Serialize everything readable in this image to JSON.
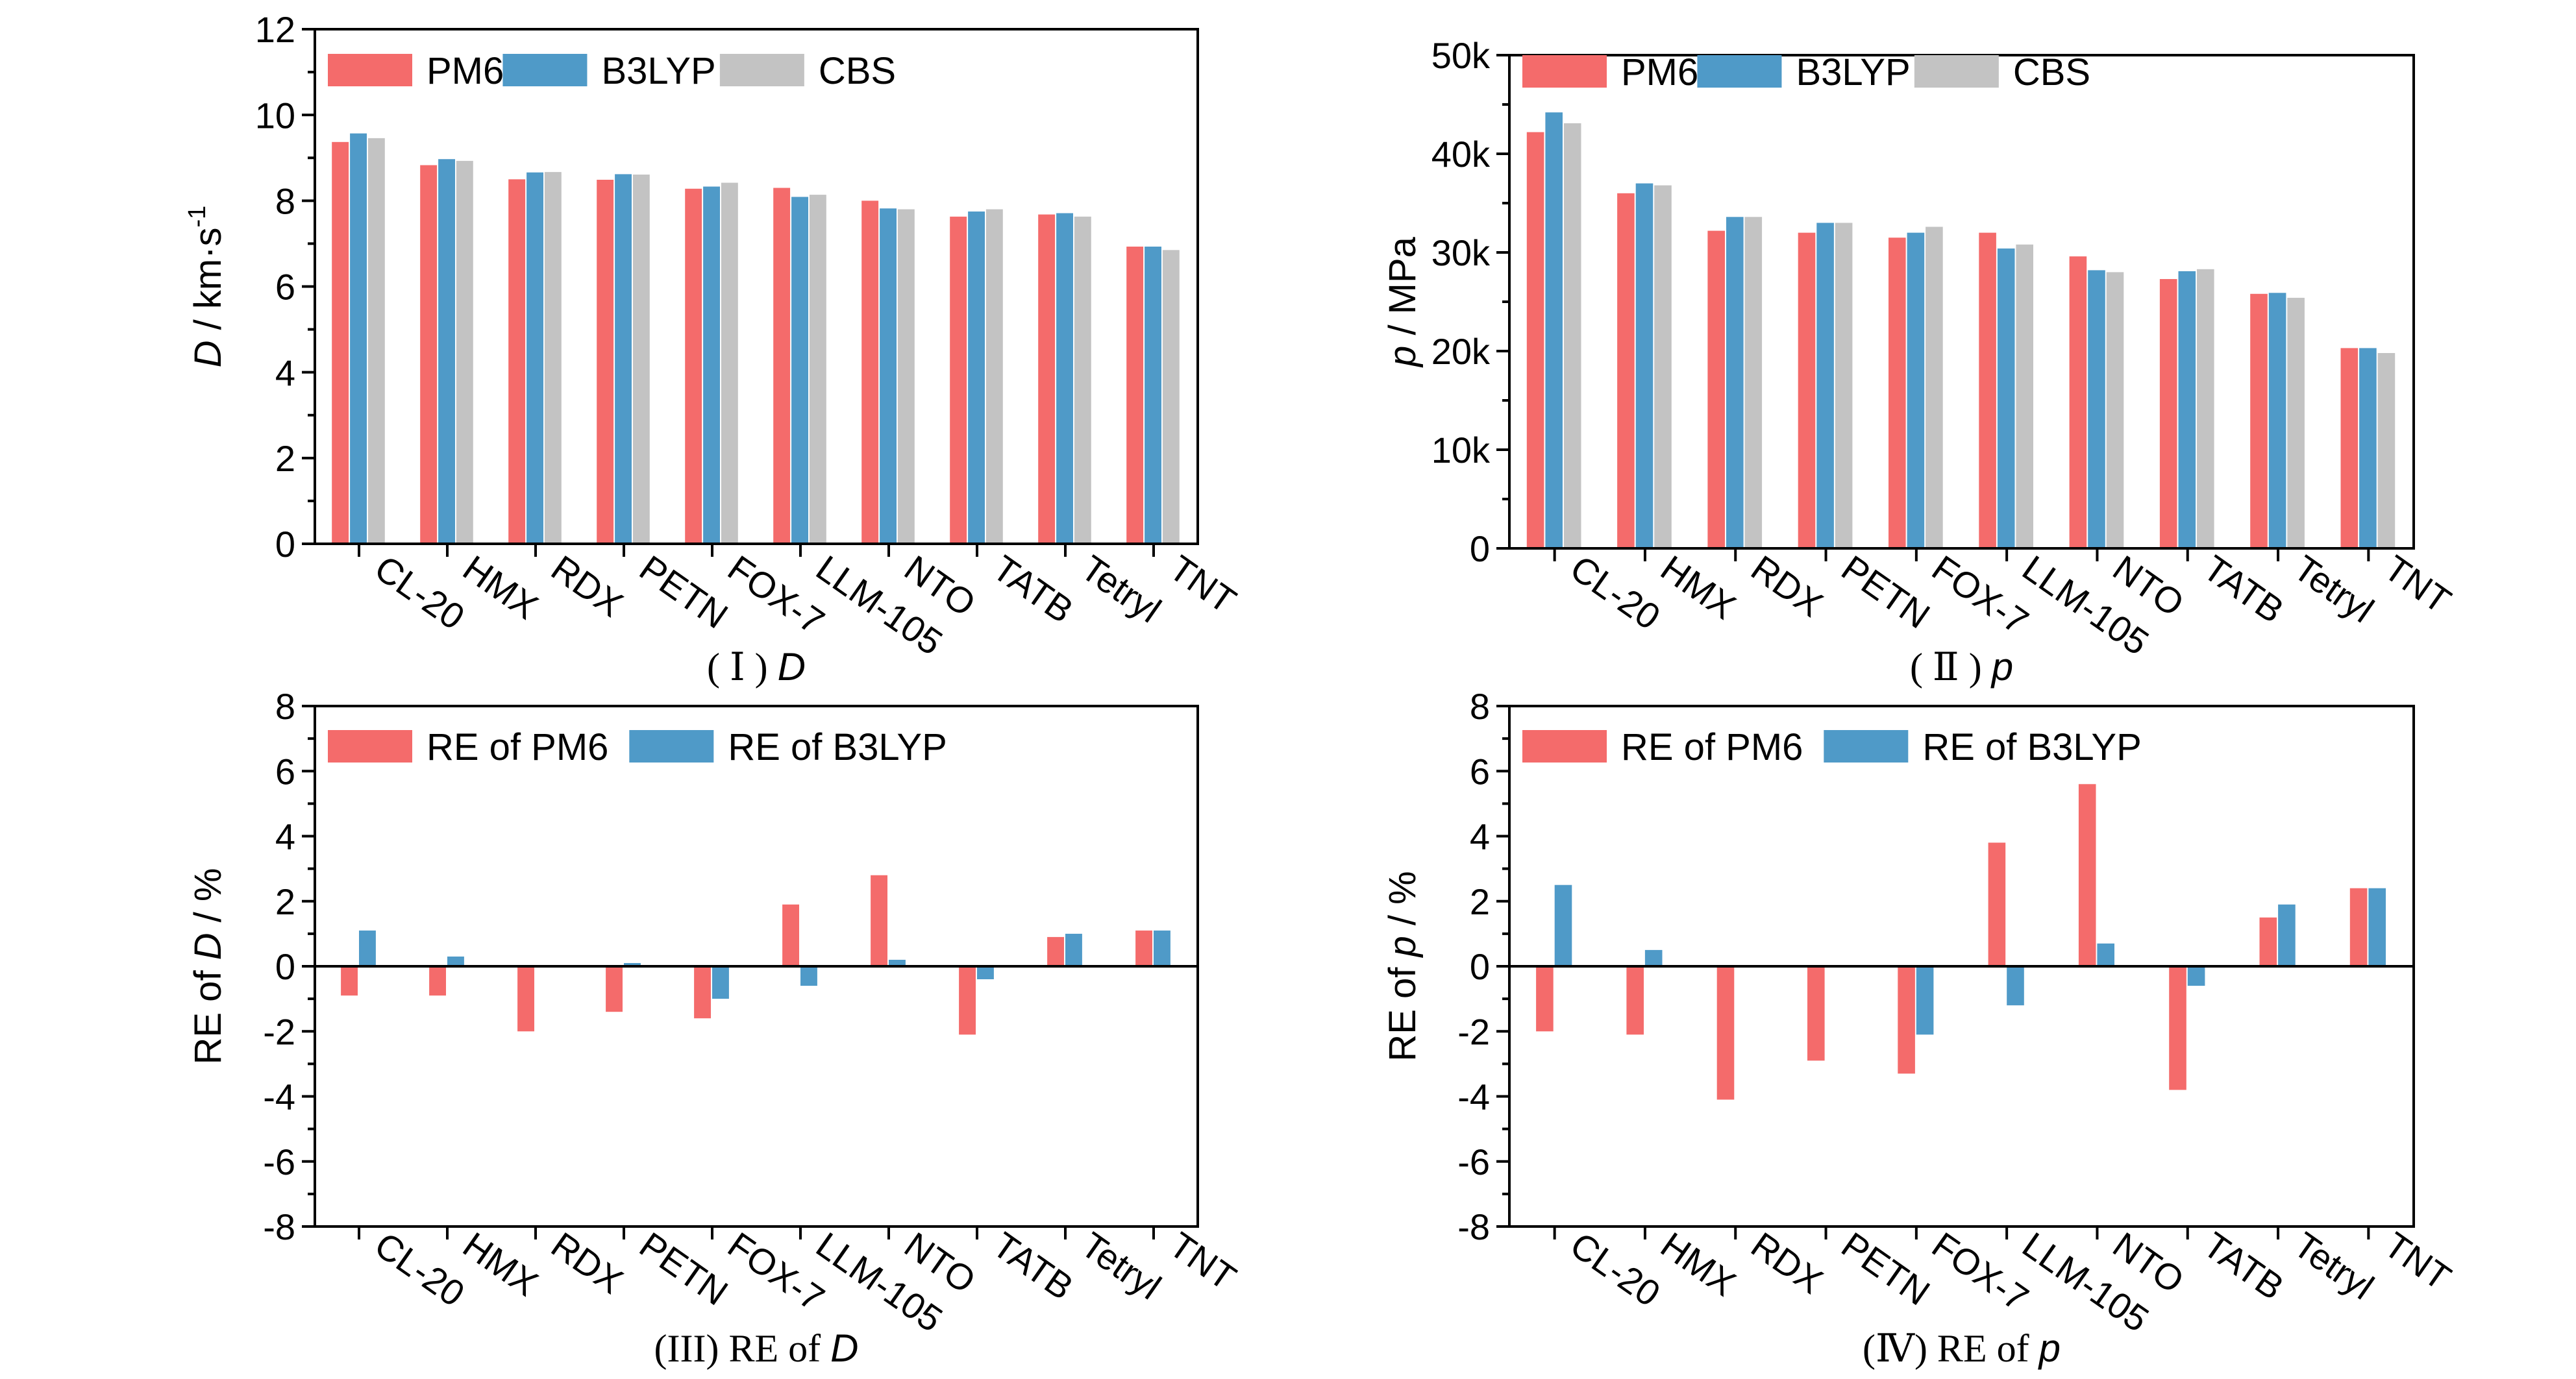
{
  "colors": {
    "pm6": "#f46b6b",
    "b3lyp": "#4f9ac8",
    "cbs": "#c3c3c3",
    "axis": "#000000"
  },
  "chart_data": [
    {
      "id": "I",
      "type": "bar",
      "caption": {
        "prefix": "( Ⅰ ) ",
        "var": "D"
      },
      "ylabel": {
        "italic": "D",
        "rest": " / km·s",
        "sup": "-1"
      },
      "ylim": [
        0,
        12
      ],
      "yticks": [
        0,
        2,
        4,
        6,
        8,
        10,
        12
      ],
      "ytick_labels": [
        "0",
        "2",
        "4",
        "6",
        "8",
        "10",
        "12"
      ],
      "grid": false,
      "legend_position": "top-left",
      "categories": [
        "CL-20",
        "HMX",
        "RDX",
        "PETN",
        "FOX-7",
        "LLM-105",
        "NTO",
        "TATB",
        "Tetryl",
        "TNT"
      ],
      "series": [
        {
          "name": "PM6",
          "color_key": "pm6",
          "values": [
            9.37,
            8.83,
            8.5,
            8.49,
            8.28,
            8.3,
            8.0,
            7.63,
            7.68,
            6.93
          ]
        },
        {
          "name": "B3LYP",
          "color_key": "b3lyp",
          "values": [
            9.57,
            8.97,
            8.66,
            8.62,
            8.33,
            8.09,
            7.82,
            7.75,
            7.71,
            6.93
          ]
        },
        {
          "name": "CBS",
          "color_key": "cbs",
          "values": [
            9.46,
            8.93,
            8.67,
            8.61,
            8.42,
            8.14,
            7.8,
            7.8,
            7.63,
            6.85
          ]
        }
      ]
    },
    {
      "id": "II",
      "type": "bar",
      "caption": {
        "prefix": "( Ⅱ ) ",
        "var": "p"
      },
      "ylabel": {
        "italic": "p",
        "rest": " / MPa",
        "sup": ""
      },
      "ylim": [
        0,
        50000
      ],
      "yticks": [
        0,
        10000,
        20000,
        30000,
        40000,
        50000
      ],
      "ytick_labels": [
        "0",
        "10k",
        "20k",
        "30k",
        "40k",
        "50k"
      ],
      "grid": false,
      "legend_position": "top-left",
      "categories": [
        "CL-20",
        "HMX",
        "RDX",
        "PETN",
        "FOX-7",
        "LLM-105",
        "NTO",
        "TATB",
        "Tetryl",
        "TNT"
      ],
      "series": [
        {
          "name": "PM6",
          "color_key": "pm6",
          "values": [
            42200,
            36000,
            32200,
            32000,
            31500,
            32000,
            29600,
            27300,
            25800,
            20300
          ]
        },
        {
          "name": "B3LYP",
          "color_key": "b3lyp",
          "values": [
            44200,
            37000,
            33600,
            33000,
            32000,
            30400,
            28200,
            28100,
            25900,
            20300
          ]
        },
        {
          "name": "CBS",
          "color_key": "cbs",
          "values": [
            43100,
            36800,
            33600,
            33000,
            32600,
            30800,
            28000,
            28300,
            25400,
            19800
          ]
        }
      ]
    },
    {
      "id": "III",
      "type": "bar",
      "caption": {
        "prefix": "(III) RE of ",
        "var": "D"
      },
      "ylabel": {
        "pre": "RE of ",
        "italic": "D",
        "rest": " / %",
        "sup": ""
      },
      "ylim": [
        -8,
        8
      ],
      "yticks": [
        -8,
        -6,
        -4,
        -2,
        0,
        2,
        4,
        6,
        8
      ],
      "ytick_labels": [
        "-8",
        "-6",
        "-4",
        "-2",
        "0",
        "2",
        "4",
        "6",
        "8"
      ],
      "grid": false,
      "legend_position": "top-left",
      "categories": [
        "CL-20",
        "HMX",
        "RDX",
        "PETN",
        "FOX-7",
        "LLM-105",
        "NTO",
        "TATB",
        "Tetryl",
        "TNT"
      ],
      "series": [
        {
          "name": "RE of PM6",
          "color_key": "pm6",
          "values": [
            -0.9,
            -0.9,
            -2.0,
            -1.4,
            -1.6,
            1.9,
            2.8,
            -2.1,
            0.9,
            1.1
          ]
        },
        {
          "name": "RE of B3LYP",
          "color_key": "b3lyp",
          "values": [
            1.1,
            0.3,
            0.0,
            0.1,
            -1.0,
            -0.6,
            0.2,
            -0.4,
            1.0,
            1.1
          ]
        }
      ]
    },
    {
      "id": "IV",
      "type": "bar",
      "caption": {
        "prefix": "(Ⅳ) RE of ",
        "var": "p"
      },
      "ylabel": {
        "pre": "RE of ",
        "italic": "p",
        "rest": " / %",
        "sup": ""
      },
      "ylim": [
        -8,
        8
      ],
      "yticks": [
        -8,
        -6,
        -4,
        -2,
        0,
        2,
        4,
        6,
        8
      ],
      "ytick_labels": [
        "-8",
        "-6",
        "-4",
        "-2",
        "0",
        "2",
        "4",
        "6",
        "8"
      ],
      "grid": false,
      "legend_position": "top-left",
      "categories": [
        "CL-20",
        "HMX",
        "RDX",
        "PETN",
        "FOX-7",
        "LLM-105",
        "NTO",
        "TATB",
        "Tetryl",
        "TNT"
      ],
      "series": [
        {
          "name": "RE of PM6",
          "color_key": "pm6",
          "values": [
            -2.0,
            -2.1,
            -4.1,
            -2.9,
            -3.3,
            3.8,
            5.6,
            -3.8,
            1.5,
            2.4
          ]
        },
        {
          "name": "RE of B3LYP",
          "color_key": "b3lyp",
          "values": [
            2.5,
            0.5,
            0.0,
            0.0,
            -2.1,
            -1.2,
            0.7,
            -0.6,
            1.9,
            2.4
          ]
        }
      ]
    }
  ]
}
